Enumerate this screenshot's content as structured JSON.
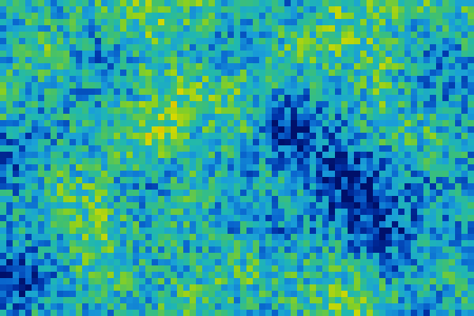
{
  "image": {
    "kind": "pixelated-intensity-map",
    "colormap": [
      "#00106a",
      "#0033a8",
      "#0a6ad0",
      "#1aa0d8",
      "#20b8b0",
      "#40c070",
      "#8ad020",
      "#d8d800",
      "#f0a000",
      "#e84010"
    ]
  }
}
